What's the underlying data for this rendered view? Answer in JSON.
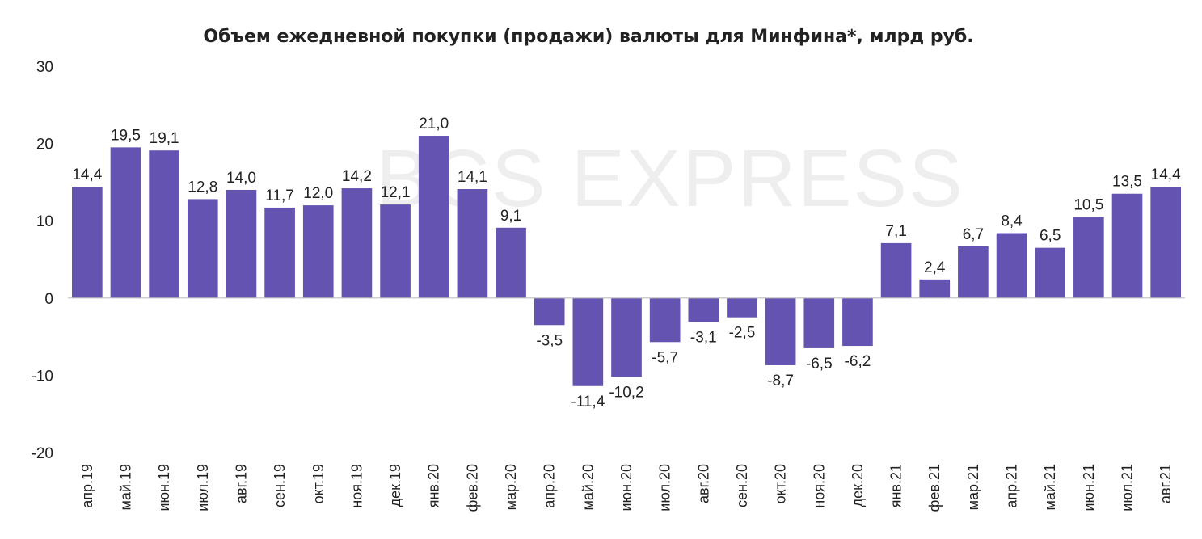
{
  "chart_data": {
    "type": "bar",
    "title": "Объем ежедневной покупки (продажи) валюты для Минфина*, млрд руб.",
    "watermark": "BCS EXPRESS",
    "categories": [
      "апр.19",
      "май.19",
      "июн.19",
      "июл.19",
      "авг.19",
      "сен.19",
      "окт.19",
      "ноя.19",
      "дек.19",
      "янв.20",
      "фев.20",
      "мар.20",
      "апр.20",
      "май.20",
      "июн.20",
      "июл.20",
      "авг.20",
      "сен.20",
      "окт.20",
      "ноя.20",
      "дек.20",
      "янв.21",
      "фев.21",
      "мар.21",
      "апр.21",
      "май.21",
      "июн.21",
      "июл.21",
      "авг.21"
    ],
    "values": [
      14.4,
      19.5,
      19.1,
      12.8,
      14.0,
      11.7,
      12.0,
      14.2,
      12.1,
      21.0,
      14.1,
      9.1,
      -3.5,
      -11.4,
      -10.2,
      -5.7,
      -3.1,
      -2.5,
      -8.7,
      -6.5,
      -6.2,
      7.1,
      2.4,
      6.7,
      8.4,
      6.5,
      10.5,
      13.5,
      14.4
    ],
    "data_labels": [
      "14,4",
      "19,5",
      "19,1",
      "12,8",
      "14,0",
      "11,7",
      "12,0",
      "14,2",
      "12,1",
      "21,0",
      "14,1",
      "9,1",
      "-3,5",
      "-11,4",
      "-10,2",
      "-5,7",
      "-3,1",
      "-2,5",
      "-8,7",
      "-6,5",
      "-6,2",
      "7,1",
      "2,4",
      "6,7",
      "8,4",
      "6,5",
      "10,5",
      "13,5",
      "14,4"
    ],
    "yticks": [
      30,
      20,
      10,
      0,
      -10,
      -20
    ],
    "ytick_labels": [
      "30",
      "20",
      "10",
      "0",
      "-10",
      "-20"
    ],
    "ylim": [
      -20,
      30
    ],
    "xlabel": "",
    "ylabel": "",
    "grid": false,
    "bar_color": "#6553b2",
    "axis_color": "#bfbfbf"
  }
}
